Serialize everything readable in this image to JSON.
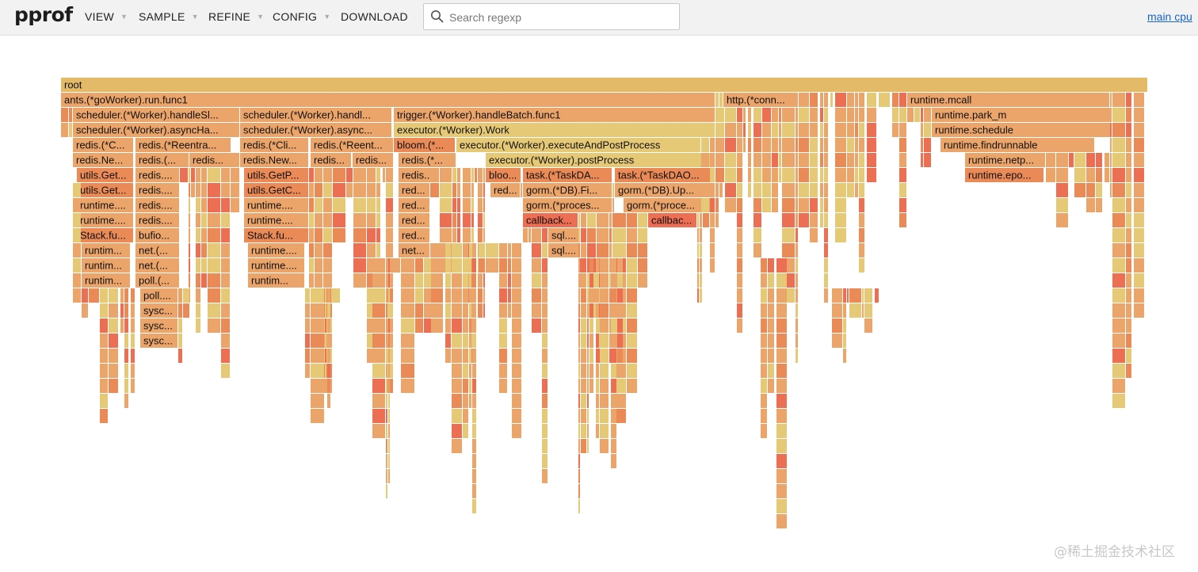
{
  "app": {
    "logo": "pprof"
  },
  "menu": [
    {
      "label": "VIEW",
      "has_caret": true
    },
    {
      "label": "SAMPLE",
      "has_caret": true
    },
    {
      "label": "REFINE",
      "has_caret": true
    },
    {
      "label": "CONFIG",
      "has_caret": true
    },
    {
      "label": "DOWNLOAD",
      "has_caret": false
    }
  ],
  "search": {
    "placeholder": "Search regexp",
    "value": "",
    "icon": "search-icon"
  },
  "profile_link": "main cpu",
  "watermark": "@稀土掘金技术社区",
  "colors": {
    "root": "#e2ba68",
    "orange": "#eba56a",
    "light": "#e6c977",
    "dark": "#ea8a57",
    "red": "#ec6e53",
    "label": "#111111",
    "link": "#1a64c8"
  },
  "flamegraph": {
    "labeled_frames": [
      "root",
      "ants.(*goWorker).run.func1",
      "http.(*conn...",
      "runtime.mcall",
      "scheduler.(*Worker).handleSl...",
      "scheduler.(*Worker).handl...",
      "trigger.(*Worker).handleBatch.func1",
      "runtime.park_m",
      "scheduler.(*Worker).asyncHa...",
      "scheduler.(*Worker).async...",
      "executor.(*Worker).Work",
      "runtime.schedule",
      "redis.(*C...",
      "redis.(*Reentra...",
      "redis.(*Cli...",
      "redis.(*Reent...",
      "bloom.(*...",
      "executor.(*Worker).executeAndPostProcess",
      "runtime.findrunnable",
      "redis.Ne...",
      "redis.(...",
      "redis...",
      "redis.New...",
      "redis...",
      "redis...",
      "redis.(*...",
      "executor.(*Worker).postProcess",
      "runtime.netp...",
      "utils.Get...",
      "redis....",
      "utils.GetP...",
      "redis...",
      "bloo...",
      "task.(*TaskDA...",
      "task.(*TaskDAO...",
      "runtime.epo...",
      "utils.Get...",
      "redis....",
      "utils.GetC...",
      "red...",
      "red...",
      "gorm.(*DB).Fi...",
      "gorm.(*DB).Up...",
      "runtime....",
      "redis....",
      "runtime....",
      "red...",
      "gorm.(*proces...",
      "gorm.(*proce...",
      "runtime....",
      "redis....",
      "runtime....",
      "red...",
      "callback...",
      "callbac...",
      "Stack.fu...",
      "bufio...",
      "Stack.fu...",
      "red...",
      "sql....",
      "runtim...",
      "net.(...",
      "runtime....",
      "net...",
      "sql....",
      "runtim...",
      "net.(...",
      "runtime....",
      "runtim...",
      "poll.(...",
      "runtim...",
      "poll....",
      "sysc...",
      "sysc...",
      "sysc..."
    ]
  }
}
